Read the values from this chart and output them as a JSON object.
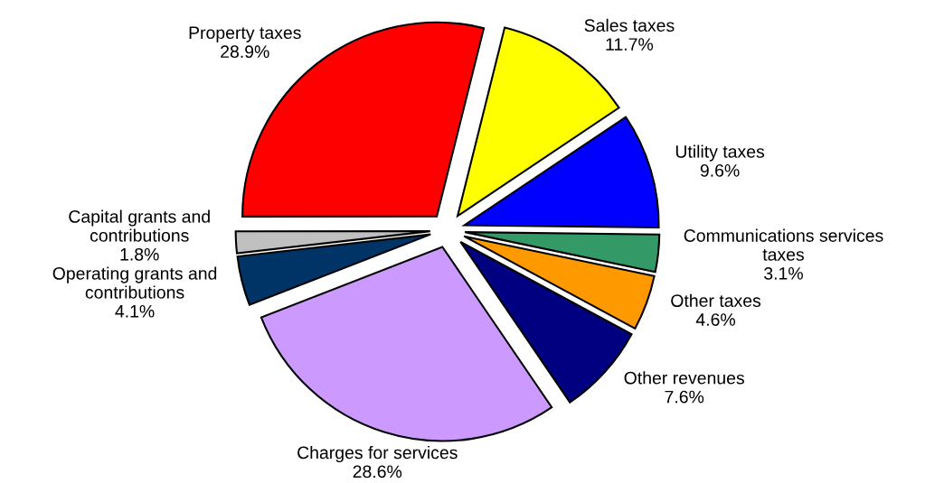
{
  "chart_data": {
    "type": "pie",
    "categories": [
      "Sales taxes",
      "Utility taxes",
      "Communications services\ntaxes",
      "Other taxes",
      "Other revenues",
      "Charges for services",
      "Operating grants and\ncontributions",
      "Capital grants and\ncontributions",
      "Property taxes"
    ],
    "values": [
      11.7,
      9.6,
      3.1,
      4.6,
      7.6,
      28.6,
      4.1,
      1.8,
      28.9
    ],
    "value_labels": [
      "11.7%",
      "9.6%",
      "3.1%",
      "4.6%",
      "7.6%",
      "28.6%",
      "4.1%",
      "1.8%",
      "28.9%"
    ],
    "colors": [
      "#ffff00",
      "#0000ff",
      "#339966",
      "#ff9900",
      "#000080",
      "#cc99ff",
      "#003366",
      "#c0c0c0",
      "#ff0000"
    ],
    "legend": false
  }
}
